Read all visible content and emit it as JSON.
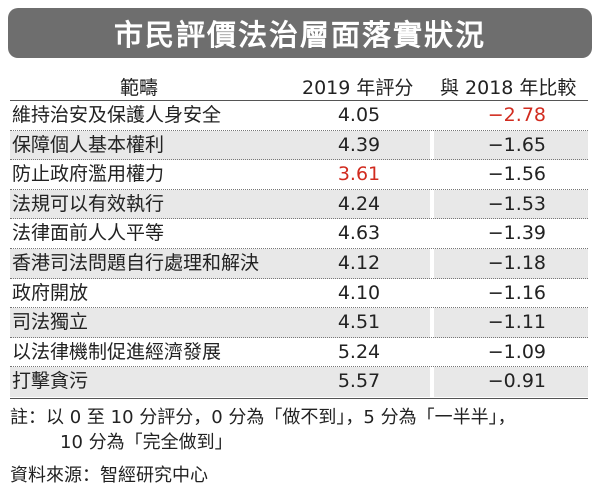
{
  "title": "市民評價法治層面落實狀況",
  "table": {
    "headers": [
      "範疇",
      "2019 年評分",
      "與 2018 年比較"
    ],
    "rows": [
      {
        "category": "維持治安及保護人身安全",
        "score": "4.05",
        "change": "−2.78",
        "score_red": false,
        "change_red": true
      },
      {
        "category": "保障個人基本權利",
        "score": "4.39",
        "change": "−1.65",
        "score_red": false,
        "change_red": false
      },
      {
        "category": "防止政府濫用權力",
        "score": "3.61",
        "change": "−1.56",
        "score_red": true,
        "change_red": false
      },
      {
        "category": "法規可以有效執行",
        "score": "4.24",
        "change": "−1.53",
        "score_red": false,
        "change_red": false
      },
      {
        "category": "法律面前人人平等",
        "score": "4.63",
        "change": "−1.39",
        "score_red": false,
        "change_red": false
      },
      {
        "category": "香港司法問題自行處理和解決",
        "score": "4.12",
        "change": "−1.18",
        "score_red": false,
        "change_red": false
      },
      {
        "category": "政府開放",
        "score": "4.10",
        "change": "−1.16",
        "score_red": false,
        "change_red": false
      },
      {
        "category": "司法獨立",
        "score": "4.51",
        "change": "−1.11",
        "score_red": false,
        "change_red": false
      },
      {
        "category": "以法律機制促進經濟發展",
        "score": "5.24",
        "change": "−1.09",
        "score_red": false,
        "change_red": false
      },
      {
        "category": "打擊貪污",
        "score": "5.57",
        "change": "−0.91",
        "score_red": false,
        "change_red": false
      }
    ]
  },
  "note": {
    "line1": "註：以 0 至 10 分評分，0 分為「做不到」，5 分為「一半半」，",
    "line2": "10 分為「完全做到」"
  },
  "source": "資料來源：智經研究中心",
  "colors": {
    "title_bg": "#6e6e6e",
    "highlight_red": "#d12b1f",
    "row_shade": "#e8e8e8"
  }
}
